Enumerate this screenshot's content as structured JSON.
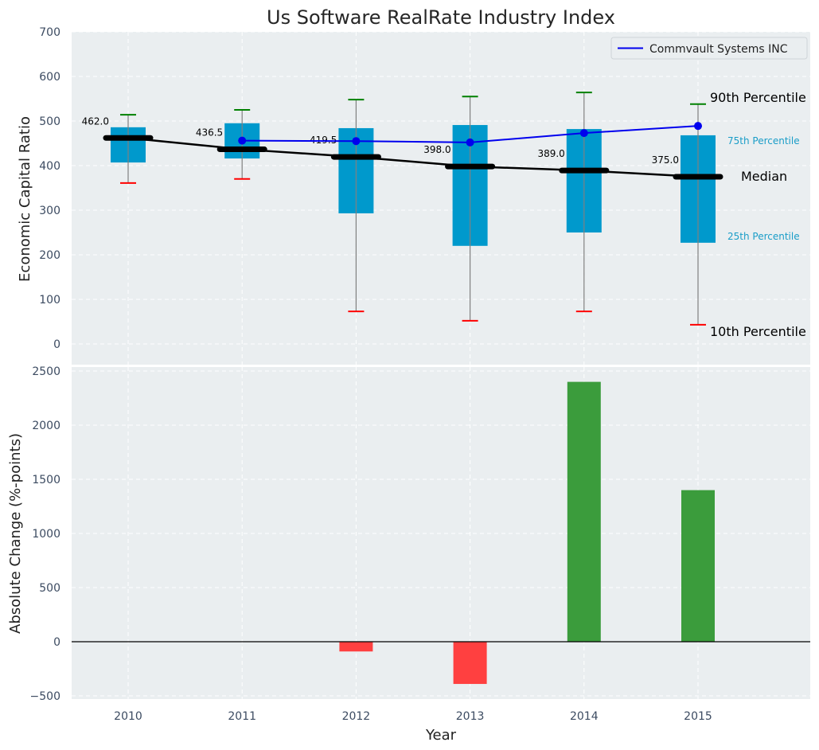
{
  "chart_data": [
    {
      "type": "box",
      "title": "Us Software RealRate Industry Index",
      "xlabel": "",
      "ylabel": "Economic Capital Ratio",
      "ylim": [
        0,
        700
      ],
      "yticks": [
        0,
        100,
        200,
        300,
        400,
        500,
        600,
        700
      ],
      "grid": true,
      "categories": [
        "2010",
        "2011",
        "2012",
        "2013",
        "2014",
        "2015"
      ],
      "p10": [
        361,
        370,
        73,
        52,
        73,
        43
      ],
      "p25": [
        407,
        416,
        293,
        220,
        250,
        227
      ],
      "median": [
        462.0,
        436.5,
        419.5,
        398.0,
        389.0,
        375.0
      ],
      "median_labels": [
        "462.0",
        "436.5",
        "419.5",
        "398.0",
        "389.0",
        "375.0"
      ],
      "p75": [
        486,
        495,
        484,
        491,
        482,
        468
      ],
      "p90": [
        514,
        525,
        548,
        555,
        564,
        538
      ],
      "series": [
        {
          "name": "Commvault Systems INC",
          "color": "#0000ee",
          "x": [
            "2011",
            "2012",
            "2013",
            "2014",
            "2015"
          ],
          "values": [
            456,
            455,
            452,
            473,
            489
          ]
        }
      ],
      "legend": {
        "position": "top-right",
        "entries": [
          "Commvault Systems INC"
        ]
      },
      "annotations": {
        "p90": "90th Percentile",
        "p75": "75th Percentile",
        "median": "Median",
        "p25": "25th Percentile",
        "p10": "10th Percentile"
      },
      "colors": {
        "box": "#0099cc",
        "median": "#000000",
        "p90_cap": "#008000",
        "p10_cap": "#ff0000",
        "whisker": "#808080",
        "background": "#eaeef0"
      }
    },
    {
      "type": "bar",
      "xlabel": "Year",
      "ylabel": "Absolute Change (%-points)",
      "ylim": [
        -520,
        2550
      ],
      "yticks": [
        -500,
        0,
        500,
        1000,
        1500,
        2000,
        2500
      ],
      "ytick_labels": [
        "−500",
        "0",
        "500",
        "1000",
        "1500",
        "2000",
        "2500"
      ],
      "grid": true,
      "categories": [
        "2010",
        "2011",
        "2012",
        "2013",
        "2014",
        "2015"
      ],
      "values": [
        0,
        0,
        -90,
        -390,
        2400,
        1400
      ],
      "colors": {
        "positive": "#3b9c3c",
        "negative": "#ff4040"
      }
    }
  ]
}
